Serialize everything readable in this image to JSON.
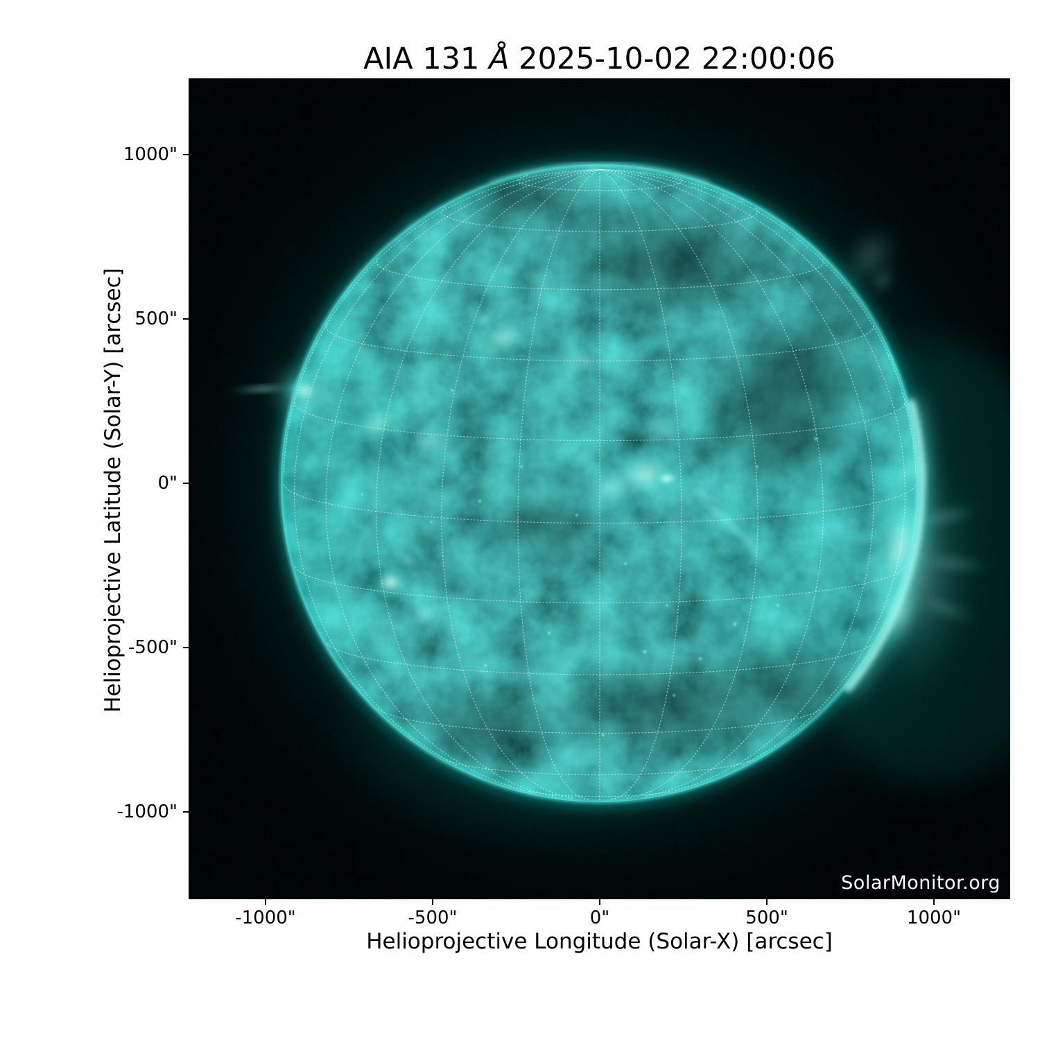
{
  "figure": {
    "title": {
      "prefix": "AIA 131 ",
      "angstrom": "Å",
      "suffix": " 2025-10-02 22:00:06"
    },
    "watermark": "SolarMonitor.org"
  },
  "axes": {
    "xlabel": "Helioprojective Longitude (Solar-X) [arcsec]",
    "ylabel": "Helioprojective Latitude (Solar-Y) [arcsec]",
    "x_tick_labels": [
      "-1000\"",
      "-500\"",
      "0\"",
      "500\"",
      "1000\""
    ],
    "y_tick_labels": [
      "1000\"",
      "500\"",
      "0\"",
      "-500\"",
      "-1000\""
    ]
  },
  "chart_data": {
    "type": "heatmap",
    "title": "AIA 131 Å 2025-10-02 22:00:06",
    "instrument": "AIA 131 Å",
    "observation_time": "2025-10-02 22:00:06",
    "xlabel": "Helioprojective Longitude (Solar-X) [arcsec]",
    "ylabel": "Helioprojective Latitude (Solar-Y) [arcsec]",
    "xlim": [
      -1235,
      1230
    ],
    "ylim": [
      -1265,
      1235
    ],
    "x_ticks_arcsec": [
      -1000,
      -500,
      0,
      500,
      1000
    ],
    "y_ticks_arcsec": [
      -1000,
      -500,
      0,
      500,
      1000
    ],
    "solar_disk": {
      "center_arcsec": [
        0,
        0
      ],
      "radius_arcsec": 960,
      "colormap": "AIA 131 teal",
      "overlay_grid": "heliographic dotted grid, 15 degree spacing"
    },
    "bright_features_arcsec": [
      {
        "name": "east-limb active region with horizontal jet",
        "solar_x": -890,
        "solar_y": 280
      },
      {
        "name": "bright loop cluster northeast",
        "solar_x": -670,
        "solar_y": 175
      },
      {
        "name": "bright loop cluster northeast 2",
        "solar_x": -510,
        "solar_y": 125
      },
      {
        "name": "active region north of center",
        "solar_x": -290,
        "solar_y": 440
      },
      {
        "name": "small active region north-northeast",
        "solar_x": -60,
        "solar_y": 370
      },
      {
        "name": "central active region complex with coronal fan rays",
        "solar_x": 150,
        "solar_y": 20
      },
      {
        "name": "southeast active region with loops",
        "solar_x": -630,
        "solar_y": -300
      },
      {
        "name": "very bright west-limb active region complex",
        "solar_x": 875,
        "solar_y": -220
      },
      {
        "name": "faint off-limb loops northwest",
        "solar_x": 795,
        "solar_y": 710
      }
    ],
    "legend": "none",
    "background": "black"
  },
  "colors": {
    "page_background": "#ffffff",
    "plot_background": "#000000",
    "disk_teal": "#0b5e5e",
    "bright_cyan": "#9ffff4",
    "limb_glow": "#2fd8cf",
    "grid_dots": "#ffffff",
    "axis_text": "#000000",
    "watermark_text": "#ffffff"
  }
}
